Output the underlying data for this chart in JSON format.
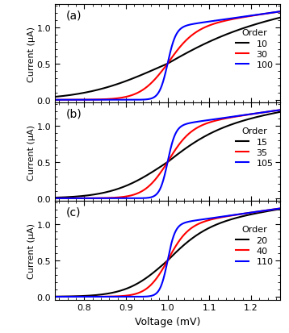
{
  "panels": [
    {
      "label": "(a)",
      "orders": [
        10,
        30,
        100
      ],
      "colors": [
        "black",
        "red",
        "blue"
      ],
      "legend_orders": [
        "10",
        "30",
        "100"
      ]
    },
    {
      "label": "(b)",
      "orders": [
        15,
        35,
        105
      ],
      "colors": [
        "black",
        "red",
        "blue"
      ],
      "legend_orders": [
        "15",
        "35",
        "105"
      ]
    },
    {
      "label": "(c)",
      "orders": [
        20,
        40,
        110
      ],
      "colors": [
        "black",
        "red",
        "blue"
      ],
      "legend_orders": [
        "20",
        "40",
        "110"
      ]
    }
  ],
  "xlim": [
    0.73,
    1.27
  ],
  "ylim": [
    -0.04,
    1.32
  ],
  "yticks": [
    0.0,
    0.5,
    1.0
  ],
  "xticks": [
    0.8,
    0.9,
    1.0,
    1.1,
    1.2
  ],
  "xlabel": "Voltage (mV)",
  "ylabel": "Current (μA)",
  "V0": 1.0,
  "background_color": "white",
  "linewidth": 1.5
}
